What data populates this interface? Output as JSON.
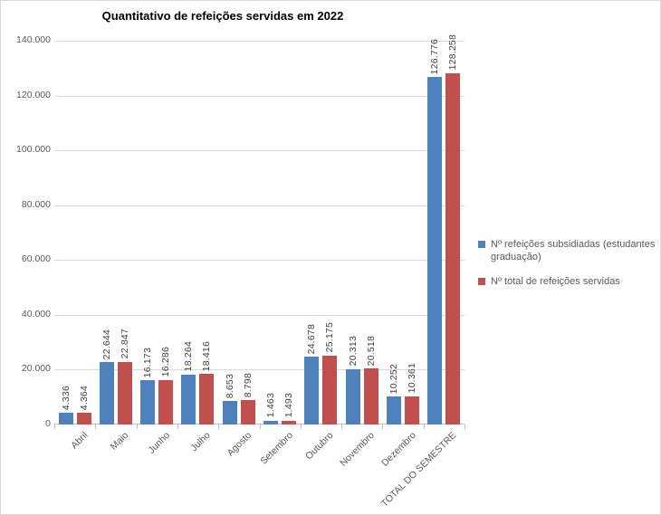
{
  "chart_data": {
    "type": "bar",
    "title": "Quantitativo de refeições servidas em 2022",
    "categories": [
      "Abril",
      "Maio",
      "Junho",
      "Julho",
      "Agosto",
      "Setembro",
      "Outubro",
      "Novembro",
      "Dezembro",
      "TOTAL DO SEMESTRE"
    ],
    "series": [
      {
        "name": "Nº refeições subsidiadas (estudantes graduação)",
        "color": "#4F81BD",
        "values": [
          4336,
          22644,
          16173,
          18264,
          8653,
          1463,
          24678,
          20313,
          10252,
          126776
        ]
      },
      {
        "name": "Nº total de refeições servidas",
        "color": "#C0504D",
        "values": [
          4364,
          22847,
          16286,
          18416,
          8798,
          1493,
          25175,
          20518,
          10361,
          128258
        ]
      }
    ],
    "ylim": [
      0,
      140000
    ],
    "ytick_step": 20000,
    "ytick_labels": [
      "0",
      "20.000",
      "40.000",
      "60.000",
      "80.000",
      "100.000",
      "120.000",
      "140.000"
    ],
    "grid": true,
    "legend_position": "right",
    "data_labels": "outside-end-rotated",
    "colors": {
      "grid": "#d9d9d9",
      "axis": "#bfbfbf",
      "axis_text": "#595959",
      "data_label_text": "#404040",
      "title_text": "#000000",
      "frame_border": "#d9d9d9"
    }
  }
}
